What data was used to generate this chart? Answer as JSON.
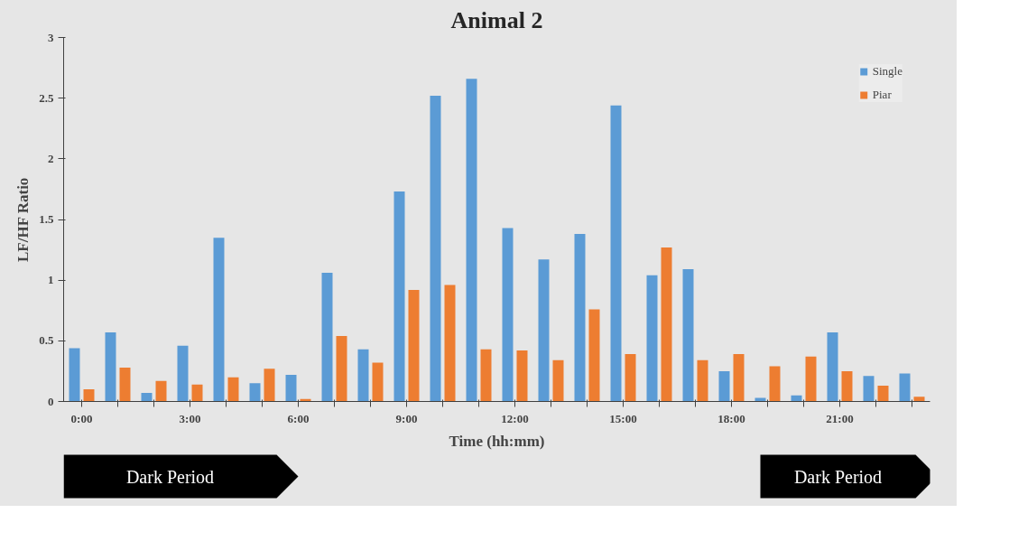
{
  "chart_data": {
    "type": "bar",
    "title": "Animal 2",
    "xlabel": "Time (hh:mm)",
    "ylabel": "LF/HF Ratio",
    "categories": [
      "0:00",
      null,
      null,
      "3:00",
      null,
      null,
      "6:00",
      null,
      null,
      "9:00",
      null,
      null,
      "12:00",
      null,
      null,
      "15:00",
      null,
      null,
      "18:00",
      null,
      null,
      "21:00",
      null,
      null
    ],
    "series": [
      {
        "name": "Single",
        "color": "#5b9bd5",
        "values": [
          0.44,
          0.57,
          0.07,
          0.46,
          1.35,
          0.15,
          0.22,
          1.06,
          0.43,
          1.73,
          2.52,
          2.66,
          1.43,
          1.17,
          1.38,
          2.44,
          1.04,
          1.09,
          0.25,
          0.03,
          0.05,
          0.57,
          0.21,
          0.23
        ]
      },
      {
        "name": "Piar",
        "color": "#ed7d31",
        "values": [
          0.1,
          0.28,
          0.17,
          0.14,
          0.2,
          0.27,
          0.02,
          0.54,
          0.32,
          0.92,
          0.96,
          0.43,
          0.42,
          0.34,
          0.76,
          0.39,
          1.27,
          0.34,
          0.39,
          0.29,
          0.37,
          0.25,
          0.13,
          0.04
        ]
      }
    ],
    "ylim": [
      0,
      3
    ],
    "yticks": [
      0,
      0.5,
      1,
      1.5,
      2,
      2.5,
      3
    ],
    "legend": "top right",
    "annotations": [
      "Dark Period",
      "Dark Period"
    ]
  }
}
